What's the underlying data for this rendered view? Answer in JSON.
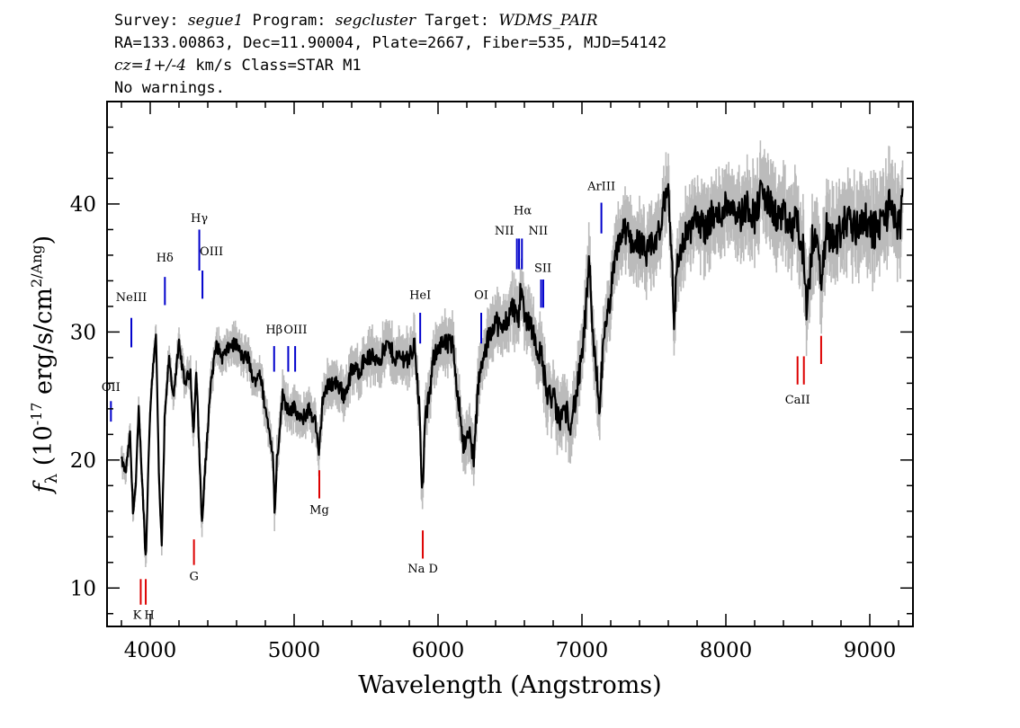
{
  "header": {
    "line1": {
      "survey_label": "Survey: ",
      "survey_value": "segue1",
      "program_label": " Program: ",
      "program_value": "segcluster",
      "target_label": " Target: ",
      "target_value": "WDMS_PAIR"
    },
    "line2": "RA=133.00863, Dec=11.90004, Plate=2667, Fiber=535, MJD=54142",
    "line3": {
      "cz_label": "cz=",
      "cz_value": "1+/-4",
      "cz_unit": " km/s Class=STAR M1"
    },
    "line4": "No warnings."
  },
  "chart_data": {
    "type": "line",
    "xlabel": "Wavelength (Angstroms)",
    "ylabel": "f_λ (10^-17 erg/s/cm^2/Ang)",
    "xlim": [
      3700,
      9300
    ],
    "ylim": [
      7,
      48
    ],
    "x_ticks": [
      4000,
      5000,
      6000,
      7000,
      8000,
      9000
    ],
    "y_ticks": [
      10,
      20,
      30,
      40
    ],
    "colors": {
      "flux": "#000000",
      "error": "#bbbbbb",
      "emission": "#0000cc",
      "absorption": "#dd0000"
    },
    "series": [
      {
        "x": [
          3800,
          3830,
          3860,
          3880,
          3900,
          3920,
          3950,
          3970,
          3990,
          4010,
          4040,
          4060,
          4080,
          4100,
          4130,
          4160,
          4200,
          4240,
          4280,
          4300,
          4320,
          4340,
          4360,
          4380,
          4420,
          4460,
          4500,
          4560,
          4600,
          4640,
          4680,
          4720,
          4760,
          4800,
          4830,
          4850,
          4865,
          4880,
          4920,
          4960,
          5000,
          5050,
          5100,
          5150,
          5170,
          5200,
          5250,
          5300,
          5350,
          5400,
          5450,
          5500,
          5550,
          5600,
          5650,
          5700,
          5750,
          5800,
          5840,
          5870,
          5890,
          5910,
          5940,
          5970,
          6000,
          6050,
          6100,
          6150,
          6180,
          6220,
          6250,
          6280,
          6320,
          6360,
          6400,
          6440,
          6480,
          6520,
          6560,
          6580,
          6600,
          6640,
          6680,
          6720,
          6760,
          6800,
          6840,
          6880,
          6920,
          6960,
          7000,
          7030,
          7050,
          7070,
          7100,
          7120,
          7150,
          7200,
          7250,
          7300,
          7350,
          7400,
          7450,
          7500,
          7550,
          7580,
          7600,
          7620,
          7640,
          7660,
          7700,
          7750,
          7800,
          7850,
          7900,
          7950,
          8000,
          8050,
          8100,
          8150,
          8200,
          8250,
          8300,
          8350,
          8400,
          8450,
          8500,
          8520,
          8540,
          8560,
          8600,
          8650,
          8660,
          8700,
          8750,
          8800,
          8850,
          8900,
          8950,
          9000,
          9050,
          9100,
          9150,
          9200,
          9230
        ],
        "values": [
          20,
          19,
          22,
          16,
          18,
          24,
          17,
          12,
          21,
          26,
          30,
          19,
          13,
          23,
          28,
          25,
          29,
          26,
          27,
          22,
          27,
          21,
          15,
          19,
          26,
          29,
          28,
          29,
          29,
          28,
          28,
          26,
          27,
          24,
          22,
          21,
          16,
          20,
          25,
          24,
          24,
          23,
          24,
          23,
          20,
          25,
          26,
          26,
          25,
          27,
          27,
          28,
          28,
          28,
          29,
          28,
          28,
          28,
          29,
          24,
          17,
          23,
          25,
          28,
          29,
          29,
          29,
          24,
          21,
          22,
          20,
          26,
          28,
          30,
          31,
          30,
          31,
          32,
          31,
          34,
          31,
          31,
          29,
          28,
          25,
          25,
          23,
          24,
          23,
          25,
          28,
          32,
          36,
          30,
          27,
          24,
          29,
          33,
          37,
          38,
          37,
          37,
          36,
          37,
          38,
          41,
          41,
          37,
          31,
          35,
          37,
          38,
          39,
          38,
          39,
          39,
          40,
          40,
          39,
          40,
          39,
          41,
          40,
          39,
          39,
          38,
          39,
          36,
          37,
          31,
          37,
          37,
          33,
          38,
          37,
          38,
          39,
          38,
          39,
          38,
          38,
          39,
          40,
          38,
          40
        ]
      }
    ],
    "annotations": [
      {
        "label": "OII",
        "wavelength": 3727,
        "kind": "emission",
        "y": [
          23.0,
          24.6
        ],
        "label_y": 25.4,
        "label_dx": 0
      },
      {
        "label": "NeIII",
        "wavelength": 3869,
        "kind": "emission",
        "y": [
          28.8,
          31.1
        ],
        "label_y": 32.4,
        "label_dx": 0
      },
      {
        "label": "Hδ",
        "wavelength": 4102,
        "kind": "emission",
        "y": [
          32.1,
          34.3
        ],
        "label_y": 35.5,
        "label_dx": 0
      },
      {
        "label": "Hγ",
        "wavelength": 4341,
        "kind": "emission",
        "y": [
          34.8,
          38.0
        ],
        "label_y": 38.6,
        "label_dx": 0
      },
      {
        "label": "OIII",
        "wavelength": 4363,
        "kind": "emission",
        "y": [
          32.6,
          34.8
        ],
        "label_y": 36.0,
        "label_dx": 10
      },
      {
        "label": "Hβ",
        "wavelength": 4861,
        "kind": "emission",
        "y": [
          26.9,
          28.9
        ],
        "label_y": 29.9,
        "label_dx": 0
      },
      {
        "label": "OIII",
        "wavelength": 4959,
        "kind": "emission",
        "y": [
          26.9,
          28.9
        ],
        "label_y": 29.9,
        "label_dx": 8
      },
      {
        "label": "",
        "wavelength": 5007,
        "kind": "emission",
        "y": [
          26.9,
          28.9
        ],
        "label_y": 29.9,
        "label_dx": 0
      },
      {
        "label": "HeI",
        "wavelength": 5876,
        "kind": "emission",
        "y": [
          29.1,
          31.5
        ],
        "label_y": 32.6,
        "label_dx": 0
      },
      {
        "label": "OI",
        "wavelength": 6300,
        "kind": "emission",
        "y": [
          29.1,
          31.5
        ],
        "label_y": 32.6,
        "label_dx": 0
      },
      {
        "label": "NII",
        "wavelength": 6548,
        "kind": "emission",
        "y": [
          34.9,
          37.3
        ],
        "label_y": 37.6,
        "label_dx": -14
      },
      {
        "label": "Hα",
        "wavelength": 6563,
        "kind": "emission",
        "y": [
          34.9,
          37.3
        ],
        "label_y": 39.2,
        "label_dx": 4
      },
      {
        "label": "NII",
        "wavelength": 6583,
        "kind": "emission",
        "y": [
          34.9,
          37.3
        ],
        "label_y": 37.6,
        "label_dx": 18
      },
      {
        "label": "SII",
        "wavelength": 6716,
        "kind": "emission",
        "y": [
          31.9,
          34.1
        ],
        "label_y": 34.7,
        "label_dx": 2
      },
      {
        "label": "",
        "wavelength": 6731,
        "kind": "emission",
        "y": [
          31.9,
          34.1
        ],
        "label_y": 34.7,
        "label_dx": 0
      },
      {
        "label": "ArIII",
        "wavelength": 7135,
        "kind": "emission",
        "y": [
          37.7,
          40.1
        ],
        "label_y": 41.1,
        "label_dx": 0
      },
      {
        "label": "K",
        "wavelength": 3934,
        "kind": "absorption",
        "y": [
          8.7,
          10.7
        ],
        "label_y": 7.6,
        "label_dx": -4
      },
      {
        "label": "H",
        "wavelength": 3969,
        "kind": "absorption",
        "y": [
          8.7,
          10.7
        ],
        "label_y": 7.6,
        "label_dx": 4
      },
      {
        "label": "G",
        "wavelength": 4304,
        "kind": "absorption",
        "y": [
          11.8,
          13.8
        ],
        "label_y": 10.6,
        "label_dx": 0
      },
      {
        "label": "Mg",
        "wavelength": 5175,
        "kind": "absorption",
        "y": [
          17.0,
          19.2
        ],
        "label_y": 15.8,
        "label_dx": 0
      },
      {
        "label": "Na D",
        "wavelength": 5894,
        "kind": "absorption",
        "y": [
          12.3,
          14.5
        ],
        "label_y": 11.2,
        "label_dx": 0
      },
      {
        "label": "CaII",
        "wavelength": 8498,
        "kind": "absorption",
        "y": [
          25.9,
          28.1
        ],
        "label_y": 24.4,
        "label_dx": 0
      },
      {
        "label": "",
        "wavelength": 8542,
        "kind": "absorption",
        "y": [
          25.9,
          28.1
        ],
        "label_y": 24.4,
        "label_dx": 0
      },
      {
        "label": "",
        "wavelength": 8662,
        "kind": "absorption",
        "y": [
          27.5,
          29.7
        ],
        "label_y": 24.4,
        "label_dx": 0
      }
    ]
  }
}
